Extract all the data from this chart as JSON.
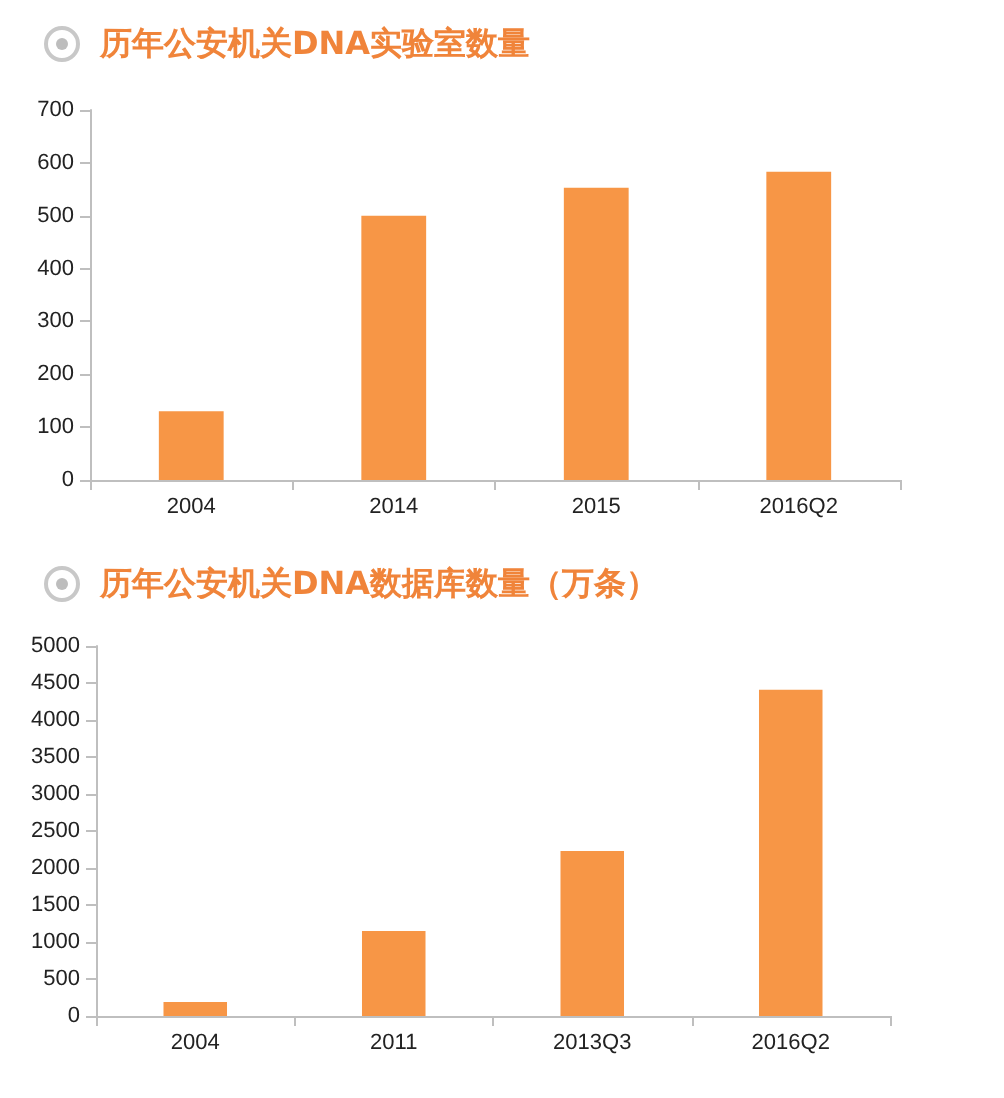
{
  "chart_data": [
    {
      "type": "bar",
      "title": "历年公安机关DNA实验室数量",
      "categories": [
        "2004",
        "2014",
        "2015",
        "2016Q2"
      ],
      "values": [
        130,
        500,
        553,
        583
      ],
      "color": "#f79646",
      "ylim": [
        0,
        700
      ],
      "yticks": [
        0,
        100,
        200,
        300,
        400,
        500,
        600,
        700
      ]
    },
    {
      "type": "bar",
      "title": "历年公安机关DNA数据库数量（万条）",
      "categories": [
        "2004",
        "2011",
        "2013Q3",
        "2016Q2"
      ],
      "values": [
        190,
        1150,
        2230,
        4410
      ],
      "color": "#f79646",
      "ylim": [
        0,
        5000
      ],
      "yticks": [
        0,
        500,
        1000,
        1500,
        2000,
        2500,
        3000,
        3500,
        4000,
        4500,
        5000
      ]
    }
  ]
}
